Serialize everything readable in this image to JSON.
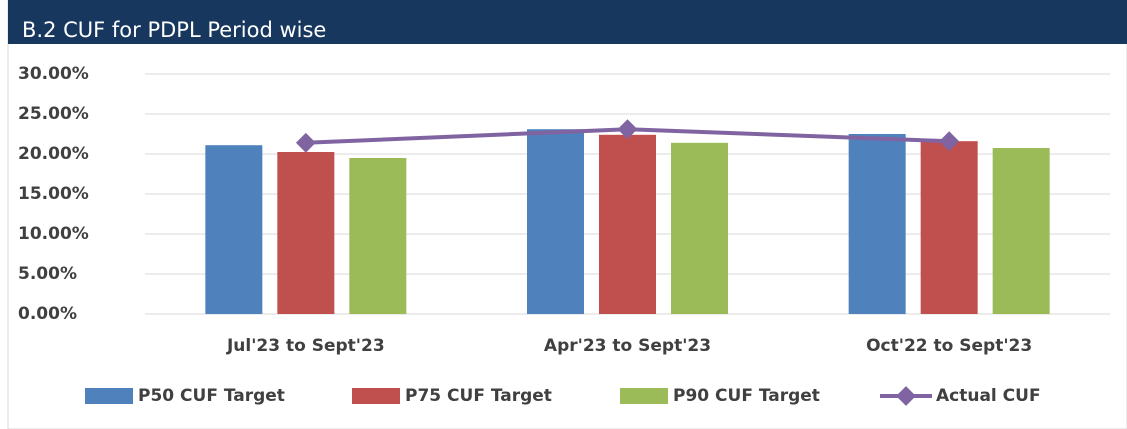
{
  "chart_data": {
    "type": "bar",
    "title": "B.2 CUF for PDPL Period wise",
    "categories": [
      "Jul'23 to Sept'23",
      "Apr'23 to Sept'23",
      "Oct'22 to Sept'23"
    ],
    "series": [
      {
        "name": "P50 CUF Target",
        "color": "#4f81bd",
        "values": [
          21.1,
          23.1,
          22.5
        ]
      },
      {
        "name": "P75 CUF Target",
        "color": "#c0504d",
        "values": [
          20.25,
          22.4,
          21.6
        ]
      },
      {
        "name": "P90 CUF Target",
        "color": "#9bbb59",
        "values": [
          19.5,
          21.4,
          20.75
        ]
      },
      {
        "name": "Actual CUF",
        "type": "line",
        "color": "#8064a2",
        "values": [
          21.4,
          23.1,
          21.6
        ]
      }
    ],
    "ylim": [
      0,
      30
    ],
    "yticks": [
      {
        "value": 0,
        "label": "0.00%"
      },
      {
        "value": 5,
        "label": "5.00%"
      },
      {
        "value": 10,
        "label": "10.00%"
      },
      {
        "value": 15,
        "label": "15.00%"
      },
      {
        "value": 20,
        "label": "20.00%"
      },
      {
        "value": 25,
        "label": "25.00%"
      },
      {
        "value": 30,
        "label": "30.00%"
      }
    ],
    "grid": true,
    "legend": "bottom"
  }
}
